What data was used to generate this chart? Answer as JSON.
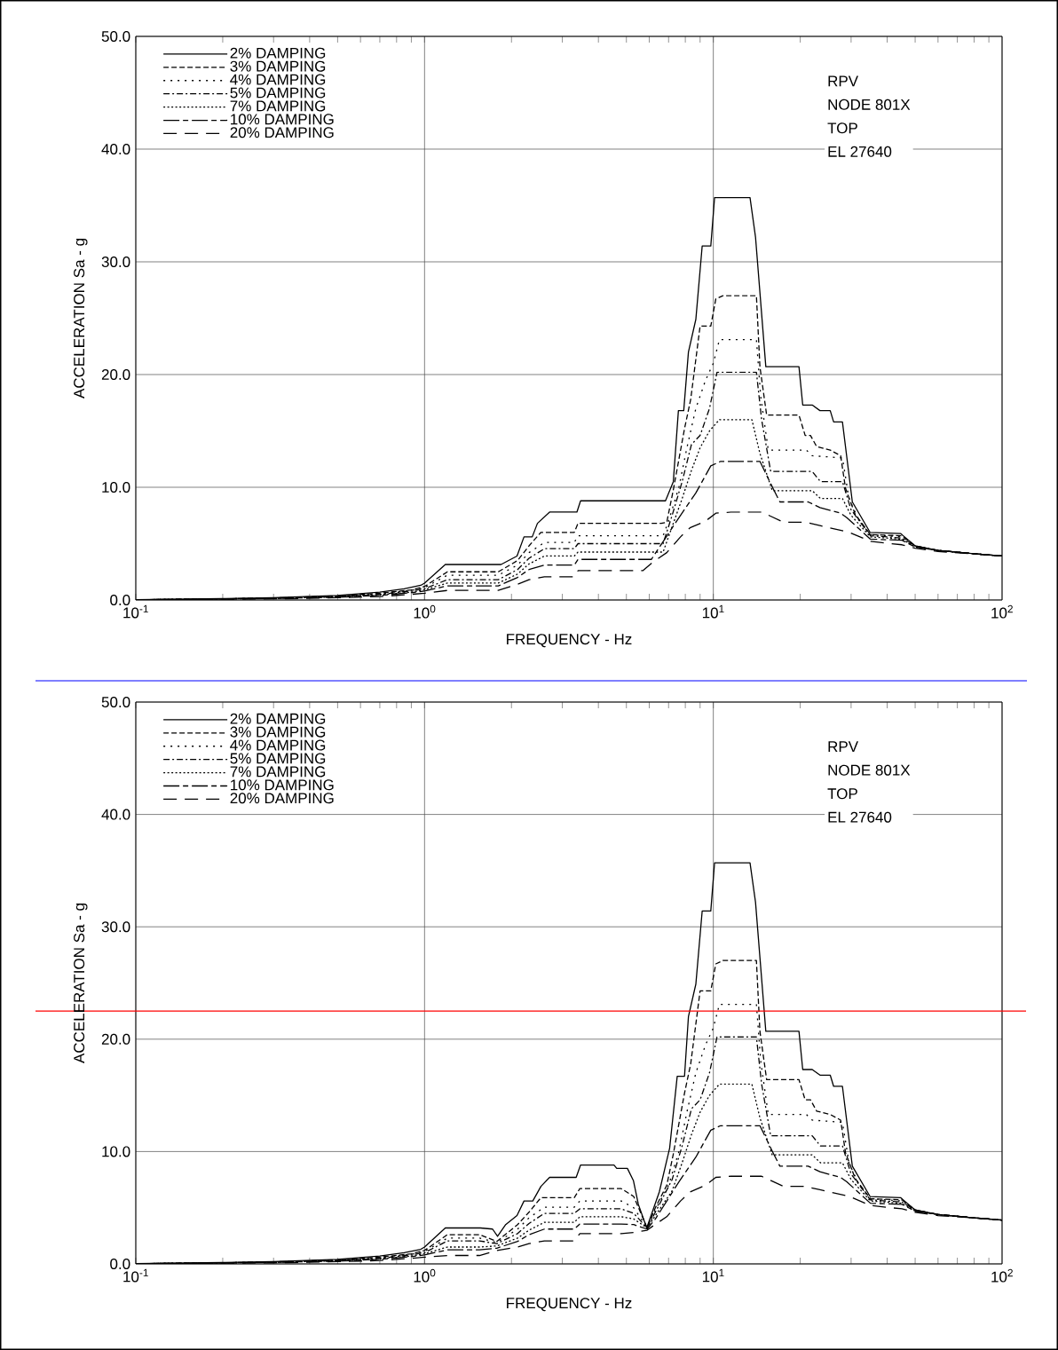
{
  "chart_data": [
    {
      "type": "line",
      "xlabel": "FREQUENCY - Hz",
      "ylabel": "ACCELERATION Sa - g",
      "log": "x",
      "grid": true,
      "legend": "top left",
      "xlim": [
        0.1,
        100
      ],
      "ylim": [
        0,
        50
      ],
      "xticks": [
        {
          "value": 0.1,
          "label": "10$^{-1}$"
        },
        {
          "value": 1,
          "label": "10$^{0}$"
        },
        {
          "value": 10,
          "label": "10$^{1}$"
        },
        {
          "value": 100,
          "label": "10$^{2}$"
        }
      ],
      "yticks": [
        {
          "value": 0,
          "label": "0.0"
        },
        {
          "value": 10,
          "label": "10.0"
        },
        {
          "value": 20,
          "label": "20.0"
        },
        {
          "value": 30,
          "label": "30.0"
        },
        {
          "value": 40,
          "label": "40.0"
        },
        {
          "value": 50,
          "label": "50.0"
        }
      ],
      "annotations": [
        "RPV",
        "NODE 801X",
        "TOP",
        "EL 27640"
      ],
      "series": [
        {
          "name": "2% DAMPING",
          "color": "#000000",
          "line_style": "solid",
          "x": [
            0.1,
            0.2,
            0.3,
            0.5,
            0.7,
            0.85,
            0.97,
            1.0,
            1.18,
            1.84,
            2.09,
            2.21,
            2.36,
            2.46,
            2.71,
            3.37,
            3.47,
            6.83,
            7.27,
            7.57,
            7.9,
            8.2,
            8.7,
            9.15,
            9.8,
            10.1,
            13.4,
            14.0,
            15.2,
            19.8,
            20.4,
            22.0,
            23.4,
            25.4,
            26.1,
            28.0,
            30.3,
            34.9,
            44.5,
            50,
            60,
            80,
            100
          ],
          "values": [
            0.02,
            0.12,
            0.2,
            0.4,
            0.7,
            1.0,
            1.3,
            1.5,
            3.15,
            3.15,
            3.9,
            5.6,
            5.6,
            6.8,
            7.8,
            7.8,
            8.8,
            8.8,
            10.5,
            16.8,
            16.8,
            22.0,
            24.9,
            31.4,
            31.4,
            35.7,
            35.7,
            32.2,
            20.7,
            20.7,
            17.3,
            17.3,
            16.8,
            16.8,
            15.8,
            15.8,
            8.7,
            6.0,
            5.9,
            4.8,
            4.4,
            4.1,
            3.9
          ]
        },
        {
          "name": "3% DAMPING",
          "color": "#000000",
          "line_style": "dashed",
          "x": [
            0.1,
            0.2,
            0.3,
            0.5,
            0.7,
            0.9,
            1.0,
            1.2,
            1.8,
            2.1,
            2.3,
            2.53,
            3.3,
            3.4,
            6.6,
            6.9,
            7.26,
            7.95,
            8.35,
            9.0,
            9.8,
            10.2,
            10.8,
            14.1,
            14.5,
            15.3,
            19.8,
            20.8,
            21.7,
            22.8,
            25.4,
            27.6,
            28.7,
            31,
            35,
            45,
            50,
            60,
            80,
            100
          ],
          "values": [
            0.02,
            0.1,
            0.18,
            0.35,
            0.6,
            0.9,
            1.2,
            2.5,
            2.5,
            3.5,
            4.8,
            6.0,
            6.0,
            6.8,
            6.8,
            6.9,
            9.7,
            15.2,
            17.8,
            24.3,
            24.3,
            26.7,
            27.0,
            27.0,
            20.7,
            16.4,
            16.4,
            14.6,
            14.6,
            13.6,
            13.3,
            12.8,
            9.9,
            7.6,
            5.8,
            5.7,
            4.8,
            4.4,
            4.1,
            3.9
          ]
        },
        {
          "name": "4% DAMPING",
          "color": "#000000",
          "line_style": "loosely dotted",
          "x": [
            0.1,
            0.2,
            0.3,
            0.5,
            0.7,
            0.9,
            1.0,
            1.2,
            1.8,
            2.1,
            2.3,
            2.6,
            3.3,
            3.4,
            6.7,
            7.0,
            7.6,
            8.1,
            8.7,
            9.4,
            10.0,
            10.5,
            14.1,
            14.6,
            15.5,
            21,
            22,
            28,
            29.5,
            32,
            35,
            45,
            50,
            60,
            80,
            100
          ],
          "values": [
            0.02,
            0.1,
            0.17,
            0.33,
            0.55,
            0.85,
            1.1,
            2.2,
            2.2,
            3.1,
            4.2,
            5.1,
            5.1,
            5.7,
            5.7,
            7.0,
            10,
            13.5,
            17,
            19.5,
            21,
            23.1,
            23.1,
            18,
            13.3,
            13.3,
            12.8,
            12.6,
            9.0,
            7.0,
            5.8,
            5.6,
            4.8,
            4.4,
            4.1,
            3.9
          ]
        },
        {
          "name": "5% DAMPING",
          "color": "#000000",
          "line_style": "dashdotted",
          "x": [
            0.1,
            0.2,
            0.3,
            0.5,
            0.7,
            0.9,
            1.0,
            1.2,
            1.8,
            2.1,
            2.3,
            2.6,
            3.3,
            3.4,
            6.7,
            7.2,
            7.8,
            8.4,
            9.0,
            9.7,
            10.3,
            14.1,
            14.7,
            15.8,
            22,
            23.5,
            28,
            30,
            35,
            45,
            50,
            60,
            80,
            100
          ],
          "values": [
            0.02,
            0.1,
            0.16,
            0.3,
            0.5,
            0.8,
            1.0,
            1.8,
            1.8,
            2.7,
            3.7,
            4.55,
            4.55,
            5.0,
            5.0,
            7.5,
            10.5,
            13.8,
            14.6,
            17.0,
            20.2,
            20.2,
            16,
            11.4,
            11.4,
            10.5,
            10.5,
            8.0,
            5.7,
            5.5,
            4.8,
            4.4,
            4.1,
            3.9
          ]
        },
        {
          "name": "7% DAMPING",
          "color": "#000000",
          "line_style": "densely dotted",
          "x": [
            0.1,
            0.2,
            0.3,
            0.5,
            0.7,
            0.9,
            1.0,
            1.2,
            1.8,
            2.1,
            2.3,
            2.6,
            3.3,
            3.4,
            6.7,
            7.2,
            7.8,
            8.4,
            9.0,
            9.7,
            10.5,
            13.6,
            14.5,
            16,
            22,
            23.5,
            28,
            30,
            35,
            45,
            50,
            60,
            80,
            100
          ],
          "values": [
            0.02,
            0.09,
            0.15,
            0.28,
            0.45,
            0.7,
            0.9,
            1.5,
            1.5,
            2.3,
            3.2,
            3.9,
            3.9,
            4.25,
            4.25,
            6.5,
            9.0,
            11.5,
            13.5,
            15,
            16.0,
            16.0,
            13,
            9.7,
            9.7,
            9.0,
            9.0,
            7.5,
            5.6,
            5.4,
            4.7,
            4.4,
            4.1,
            3.9
          ]
        },
        {
          "name": "10% DAMPING",
          "color": "#000000",
          "line_style": "long dash dash",
          "x": [
            0.1,
            0.2,
            0.3,
            0.5,
            0.7,
            0.9,
            1.0,
            1.2,
            1.8,
            2.1,
            2.3,
            2.6,
            3.3,
            3.4,
            6.1,
            7.6,
            8.7,
            9.8,
            10.6,
            14.5,
            16.1,
            17,
            21.3,
            23.4,
            27.6,
            29,
            35,
            45,
            50,
            60,
            80,
            100
          ],
          "values": [
            0.02,
            0.08,
            0.14,
            0.25,
            0.4,
            0.65,
            0.8,
            1.25,
            1.25,
            2.0,
            2.7,
            3.1,
            3.1,
            3.6,
            3.6,
            7.3,
            9.5,
            11.9,
            12.3,
            12.3,
            9.9,
            8.7,
            8.7,
            8.2,
            7.7,
            7.3,
            5.4,
            5.3,
            4.7,
            4.4,
            4.1,
            3.9
          ]
        },
        {
          "name": "20% DAMPING",
          "color": "#000000",
          "line_style": "loosely long dashed",
          "x": [
            0.1,
            0.2,
            0.3,
            0.5,
            0.7,
            0.9,
            1.0,
            1.2,
            1.8,
            2.1,
            2.3,
            2.6,
            3.3,
            3.4,
            5.7,
            6.2,
            6.9,
            7.7,
            8.3,
            9.4,
            10.2,
            11.5,
            14.7,
            15.9,
            17.5,
            20.8,
            23.4,
            29.6,
            35,
            45,
            50,
            60,
            80,
            100
          ],
          "values": [
            0.01,
            0.06,
            0.1,
            0.2,
            0.3,
            0.5,
            0.6,
            0.85,
            0.85,
            1.4,
            1.8,
            2.05,
            2.05,
            2.6,
            2.6,
            3.4,
            4.2,
            5.6,
            6.4,
            7.0,
            7.7,
            7.8,
            7.8,
            7.4,
            6.9,
            6.9,
            6.6,
            6.0,
            5.2,
            4.9,
            4.6,
            4.3,
            4.1,
            3.9
          ]
        }
      ]
    },
    {
      "type": "line",
      "xlabel": "FREQUENCY - Hz",
      "ylabel": "ACCELERATION Sa - g",
      "log": "x",
      "grid": true,
      "legend": "top left",
      "xlim": [
        0.1,
        100
      ],
      "ylim": [
        0,
        50
      ],
      "xticks": [
        {
          "value": 0.1,
          "label": "10$^{-1}$"
        },
        {
          "value": 1,
          "label": "10$^{0}$"
        },
        {
          "value": 10,
          "label": "10$^{1}$"
        },
        {
          "value": 100,
          "label": "10$^{2}$"
        }
      ],
      "yticks": [
        {
          "value": 0,
          "label": "0.0"
        },
        {
          "value": 10,
          "label": "10.0"
        },
        {
          "value": 20,
          "label": "20.0"
        },
        {
          "value": 30,
          "label": "30.0"
        },
        {
          "value": 40,
          "label": "40.0"
        },
        {
          "value": 50,
          "label": "50.0"
        }
      ],
      "annotations": [
        "RPV",
        "NODE 801X",
        "TOP",
        "EL 27640"
      ],
      "ref_lines": [
        {
          "axis": "y",
          "value": 22.5,
          "color": "#ff0000"
        }
      ],
      "series": [
        {
          "name": "2% DAMPING",
          "color": "#000000",
          "line_style": "solid",
          "x": [
            0.1,
            0.2,
            0.3,
            0.5,
            0.7,
            0.85,
            0.97,
            1.0,
            1.18,
            1.56,
            1.72,
            1.79,
            1.91,
            2.09,
            2.21,
            2.37,
            2.53,
            2.71,
            3.35,
            3.47,
            4.53,
            4.63,
            5.04,
            5.29,
            5.5,
            5.88,
            6.5,
            7.06,
            7.5,
            7.95,
            8.2,
            8.7,
            9.15,
            9.8,
            10.1,
            13.4,
            14.0,
            15.2,
            19.8,
            20.4,
            22.0,
            23.4,
            25.4,
            26.1,
            28.0,
            30.3,
            34.9,
            44.5,
            50,
            60,
            80,
            100
          ],
          "values": [
            0.02,
            0.12,
            0.2,
            0.4,
            0.7,
            1.0,
            1.3,
            1.5,
            3.2,
            3.2,
            3.1,
            2.45,
            3.5,
            4.3,
            5.6,
            5.6,
            6.9,
            7.7,
            7.7,
            8.8,
            8.8,
            8.5,
            8.5,
            7.4,
            5.3,
            3.2,
            6.4,
            10.3,
            16.7,
            16.7,
            22.0,
            24.9,
            31.4,
            31.4,
            35.7,
            35.7,
            32.2,
            20.7,
            20.7,
            17.3,
            17.3,
            16.8,
            16.8,
            15.8,
            15.8,
            8.7,
            6.0,
            5.9,
            4.8,
            4.4,
            4.1,
            3.9
          ]
        },
        {
          "name": "3% DAMPING",
          "color": "#000000",
          "line_style": "dashed",
          "x": [
            0.1,
            0.2,
            0.3,
            0.5,
            0.7,
            0.9,
            1.0,
            1.2,
            1.55,
            1.78,
            2.1,
            2.3,
            2.53,
            3.3,
            3.45,
            4.8,
            5.3,
            5.9,
            6.3,
            6.9,
            7.26,
            7.95,
            8.35,
            9.0,
            9.8,
            10.2,
            10.8,
            14.1,
            14.5,
            15.3,
            19.8,
            20.8,
            21.7,
            22.8,
            25.4,
            27.6,
            28.7,
            31,
            35,
            45,
            50,
            60,
            80,
            100
          ],
          "values": [
            0.02,
            0.1,
            0.18,
            0.35,
            0.6,
            0.9,
            1.2,
            2.6,
            2.6,
            2.0,
            3.5,
            4.6,
            5.9,
            5.9,
            6.7,
            6.7,
            6.0,
            3.2,
            5.0,
            7.0,
            9.7,
            15.2,
            17.8,
            24.3,
            24.3,
            26.7,
            27.0,
            27.0,
            20.7,
            16.4,
            16.4,
            14.6,
            14.6,
            13.6,
            13.3,
            12.8,
            9.9,
            7.6,
            5.8,
            5.7,
            4.8,
            4.4,
            4.1,
            3.9
          ]
        },
        {
          "name": "4% DAMPING",
          "color": "#000000",
          "line_style": "loosely dotted",
          "x": [
            0.1,
            0.2,
            0.3,
            0.5,
            0.7,
            0.9,
            1.0,
            1.2,
            1.55,
            1.78,
            2.1,
            2.3,
            2.6,
            3.3,
            3.45,
            4.8,
            5.3,
            5.9,
            6.3,
            7.0,
            7.6,
            8.1,
            8.7,
            9.4,
            10.0,
            10.5,
            14.1,
            14.6,
            15.5,
            21,
            22,
            28,
            29.5,
            32,
            35,
            45,
            50,
            60,
            80,
            100
          ],
          "values": [
            0.02,
            0.1,
            0.17,
            0.33,
            0.55,
            0.85,
            1.1,
            2.3,
            2.3,
            1.9,
            3.1,
            4.1,
            5.05,
            5.05,
            5.6,
            5.6,
            5.0,
            3.2,
            4.8,
            7.0,
            10,
            13.5,
            17,
            19.5,
            21,
            23.1,
            23.1,
            18,
            13.3,
            13.3,
            12.8,
            12.6,
            9.0,
            7.0,
            5.8,
            5.6,
            4.8,
            4.4,
            4.1,
            3.9
          ]
        },
        {
          "name": "5% DAMPING",
          "color": "#000000",
          "line_style": "dashdotted",
          "x": [
            0.1,
            0.2,
            0.3,
            0.5,
            0.7,
            0.9,
            1.0,
            1.2,
            1.55,
            1.78,
            2.1,
            2.3,
            2.6,
            3.3,
            3.45,
            4.8,
            5.3,
            5.9,
            6.3,
            7.2,
            7.8,
            8.4,
            9.0,
            9.7,
            10.3,
            14.1,
            14.7,
            15.8,
            22,
            23.5,
            28,
            30,
            35,
            45,
            50,
            60,
            80,
            100
          ],
          "values": [
            0.02,
            0.1,
            0.16,
            0.3,
            0.5,
            0.8,
            1.0,
            2.05,
            2.05,
            1.8,
            2.7,
            3.6,
            4.5,
            4.5,
            4.9,
            4.9,
            4.5,
            3.2,
            4.6,
            7.5,
            10.5,
            13.8,
            14.6,
            17.0,
            20.2,
            20.2,
            16,
            11.4,
            11.4,
            10.5,
            10.5,
            8.0,
            5.7,
            5.5,
            4.8,
            4.4,
            4.1,
            3.9
          ]
        },
        {
          "name": "7% DAMPING",
          "color": "#000000",
          "line_style": "densely dotted",
          "x": [
            0.1,
            0.2,
            0.3,
            0.5,
            0.7,
            0.9,
            1.0,
            1.2,
            1.55,
            1.78,
            2.1,
            2.3,
            2.6,
            3.3,
            3.45,
            4.8,
            5.3,
            5.9,
            6.3,
            7.2,
            7.8,
            8.4,
            9.0,
            9.7,
            10.5,
            13.6,
            14.5,
            16,
            22,
            23.5,
            28,
            30,
            35,
            45,
            50,
            60,
            80,
            100
          ],
          "values": [
            0.02,
            0.09,
            0.15,
            0.28,
            0.45,
            0.7,
            0.9,
            1.5,
            1.5,
            1.6,
            2.3,
            3.0,
            3.7,
            3.7,
            4.2,
            4.2,
            4.0,
            3.2,
            4.3,
            6.5,
            9.0,
            11.5,
            13.5,
            15,
            16.0,
            16.0,
            13,
            9.7,
            9.7,
            9.0,
            9.0,
            7.5,
            5.6,
            5.4,
            4.7,
            4.4,
            4.1,
            3.9
          ]
        },
        {
          "name": "10% DAMPING",
          "color": "#000000",
          "line_style": "long dash dash",
          "x": [
            0.1,
            0.2,
            0.3,
            0.5,
            0.7,
            0.9,
            1.0,
            1.2,
            1.55,
            1.78,
            2.1,
            2.3,
            2.6,
            3.3,
            3.45,
            4.8,
            5.3,
            5.9,
            6.3,
            7.6,
            8.7,
            9.8,
            10.6,
            14.5,
            16.1,
            17,
            21.3,
            23.4,
            27.6,
            29,
            35,
            45,
            50,
            60,
            80,
            100
          ],
          "values": [
            0.02,
            0.08,
            0.14,
            0.25,
            0.4,
            0.65,
            0.8,
            1.25,
            1.25,
            1.4,
            2.0,
            2.6,
            3.1,
            3.1,
            3.55,
            3.55,
            3.5,
            3.1,
            4.0,
            7.3,
            9.5,
            11.9,
            12.3,
            12.3,
            9.9,
            8.7,
            8.7,
            8.2,
            7.7,
            7.3,
            5.4,
            5.3,
            4.7,
            4.4,
            4.1,
            3.9
          ]
        },
        {
          "name": "20% DAMPING",
          "color": "#000000",
          "line_style": "loosely long dashed",
          "x": [
            0.1,
            0.2,
            0.3,
            0.5,
            0.7,
            0.9,
            1.0,
            1.2,
            1.55,
            1.78,
            2.1,
            2.3,
            2.6,
            3.3,
            3.45,
            4.8,
            5.3,
            5.9,
            6.2,
            6.9,
            7.7,
            8.3,
            9.4,
            10.2,
            11.5,
            14.7,
            15.9,
            17.5,
            20.8,
            23.4,
            29.6,
            35,
            45,
            50,
            60,
            80,
            100
          ],
          "values": [
            0.01,
            0.06,
            0.1,
            0.2,
            0.3,
            0.5,
            0.6,
            0.75,
            0.75,
            1.2,
            1.5,
            1.8,
            2.05,
            2.05,
            2.7,
            2.7,
            2.8,
            3.0,
            3.4,
            4.2,
            5.6,
            6.4,
            7.0,
            7.7,
            7.8,
            7.8,
            7.4,
            6.9,
            6.9,
            6.6,
            6.0,
            5.2,
            4.9,
            4.6,
            4.3,
            4.1,
            3.9
          ]
        }
      ]
    }
  ]
}
